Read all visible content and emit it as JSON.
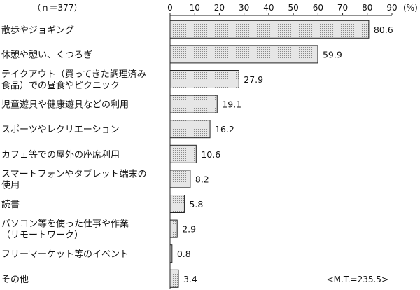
{
  "chart_data": {
    "type": "bar",
    "orientation": "horizontal",
    "sample_label": "（ｎ＝377）",
    "unit_label": "(%)",
    "xlim": [
      0,
      90
    ],
    "ticks": [
      0,
      10,
      20,
      30,
      40,
      50,
      60,
      70,
      80,
      90
    ],
    "categories": [
      [
        "散歩やジョギング"
      ],
      [
        "休憩や憩い、くつろぎ"
      ],
      [
        "テイクアウト（買ってきた調理済み",
        "食品）での昼食やピクニック"
      ],
      [
        "児童遊具や健康遊具などの利用"
      ],
      [
        "スポーツやレクリエーション"
      ],
      [
        "カフェ等での屋外の座席利用"
      ],
      [
        "スマートフォンやタブレット端末の",
        "使用"
      ],
      [
        "読書"
      ],
      [
        "パソコン等を使った仕事や作業",
        "（リモートワーク）"
      ],
      [
        "フリーマーケット等のイベント"
      ],
      [
        "その他"
      ]
    ],
    "values": [
      80.6,
      59.9,
      27.9,
      19.1,
      16.2,
      10.6,
      8.2,
      5.8,
      2.9,
      0.8,
      3.4
    ],
    "value_labels": [
      "80.6",
      "59.9",
      "27.9",
      "19.1",
      "16.2",
      "10.6",
      "8.2",
      "5.8",
      "2.9",
      "0.8",
      "3.4"
    ],
    "annotation": "<M.T.=235.5>",
    "grid": false,
    "bar_fill": "#e6e6e6",
    "bar_stroke": "#222222"
  }
}
